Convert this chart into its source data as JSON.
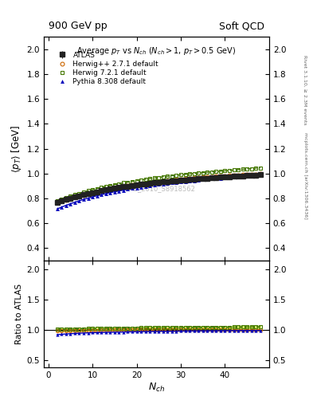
{
  "title_left": "900 GeV pp",
  "title_right": "Soft QCD",
  "plot_title": "Average $p_T$ vs $N_{ch}$ ($N_{ch} > 1$, $p_T > 0.5$ GeV)",
  "ylabel_main": "$\\langle p_T \\rangle$ [GeV]",
  "ylabel_ratio": "Ratio to ATLAS",
  "xlabel": "$N_{ch}$",
  "right_label_top": "Rivet 3.1.10, ≥ 2.3M events",
  "right_label_bottom": "mcplots.cern.ch [arXiv:1306.3436]",
  "watermark": "ATLAS_2010_S8918562",
  "ylim_main": [
    0.3,
    2.1
  ],
  "ylim_ratio": [
    0.39,
    2.15
  ],
  "yticks_main": [
    0.4,
    0.6,
    0.8,
    1.0,
    1.2,
    1.4,
    1.6,
    1.8,
    2.0
  ],
  "yticks_ratio": [
    0.5,
    1.0,
    1.5,
    2.0
  ],
  "xlim": [
    -1,
    50
  ],
  "xticks": [
    0,
    10,
    20,
    30,
    40
  ],
  "nch_atlas": [
    2,
    3,
    4,
    5,
    6,
    7,
    8,
    9,
    10,
    11,
    12,
    13,
    14,
    15,
    16,
    17,
    18,
    19,
    20,
    21,
    22,
    23,
    24,
    25,
    26,
    27,
    28,
    29,
    30,
    31,
    32,
    33,
    34,
    35,
    36,
    37,
    38,
    39,
    40,
    41,
    42,
    43,
    44,
    45,
    46,
    47,
    48
  ],
  "pt_atlas": [
    0.77,
    0.782,
    0.793,
    0.803,
    0.812,
    0.821,
    0.83,
    0.838,
    0.846,
    0.854,
    0.861,
    0.868,
    0.875,
    0.881,
    0.887,
    0.893,
    0.898,
    0.903,
    0.908,
    0.913,
    0.917,
    0.921,
    0.925,
    0.929,
    0.933,
    0.937,
    0.94,
    0.943,
    0.946,
    0.949,
    0.952,
    0.955,
    0.958,
    0.96,
    0.963,
    0.965,
    0.968,
    0.97,
    0.972,
    0.975,
    0.977,
    0.979,
    0.981,
    0.983,
    0.985,
    0.987,
    0.989
  ],
  "pt_atlas_err": [
    0.01,
    0.009,
    0.008,
    0.007,
    0.007,
    0.006,
    0.006,
    0.006,
    0.005,
    0.005,
    0.005,
    0.005,
    0.005,
    0.005,
    0.005,
    0.005,
    0.005,
    0.005,
    0.005,
    0.005,
    0.005,
    0.005,
    0.005,
    0.005,
    0.005,
    0.005,
    0.005,
    0.005,
    0.005,
    0.005,
    0.005,
    0.005,
    0.005,
    0.005,
    0.005,
    0.005,
    0.006,
    0.006,
    0.006,
    0.006,
    0.007,
    0.007,
    0.007,
    0.008,
    0.009,
    0.01,
    0.012
  ],
  "nch_herwigpp": [
    2,
    3,
    4,
    5,
    6,
    7,
    8,
    9,
    10,
    11,
    12,
    13,
    14,
    15,
    16,
    17,
    18,
    19,
    20,
    21,
    22,
    23,
    24,
    25,
    26,
    27,
    28,
    29,
    30,
    31,
    32,
    33,
    34,
    35,
    36,
    37,
    38,
    39,
    40,
    41,
    42,
    43,
    44,
    45,
    46,
    47,
    48
  ],
  "pt_herwigpp": [
    0.768,
    0.779,
    0.79,
    0.8,
    0.81,
    0.819,
    0.828,
    0.837,
    0.845,
    0.853,
    0.861,
    0.868,
    0.875,
    0.882,
    0.888,
    0.894,
    0.9,
    0.906,
    0.911,
    0.916,
    0.921,
    0.926,
    0.93,
    0.935,
    0.939,
    0.943,
    0.947,
    0.951,
    0.954,
    0.958,
    0.961,
    0.964,
    0.967,
    0.97,
    0.972,
    0.975,
    0.977,
    0.979,
    0.981,
    0.983,
    0.985,
    0.987,
    0.989,
    0.991,
    0.993,
    0.995,
    0.997
  ],
  "nch_herwig72": [
    2,
    3,
    4,
    5,
    6,
    7,
    8,
    9,
    10,
    11,
    12,
    13,
    14,
    15,
    16,
    17,
    18,
    19,
    20,
    21,
    22,
    23,
    24,
    25,
    26,
    27,
    28,
    29,
    30,
    31,
    32,
    33,
    34,
    35,
    36,
    37,
    38,
    39,
    40,
    41,
    42,
    43,
    44,
    45,
    46,
    47,
    48
  ],
  "pt_herwig72": [
    0.782,
    0.795,
    0.807,
    0.819,
    0.83,
    0.841,
    0.851,
    0.861,
    0.87,
    0.879,
    0.888,
    0.896,
    0.904,
    0.911,
    0.918,
    0.925,
    0.931,
    0.937,
    0.943,
    0.949,
    0.954,
    0.959,
    0.964,
    0.969,
    0.974,
    0.978,
    0.982,
    0.986,
    0.99,
    0.994,
    0.997,
    1.001,
    1.004,
    1.007,
    1.01,
    1.013,
    1.016,
    1.019,
    1.022,
    1.025,
    1.028,
    1.031,
    1.034,
    1.037,
    1.04,
    1.043,
    1.046
  ],
  "nch_pythia": [
    2,
    3,
    4,
    5,
    6,
    7,
    8,
    9,
    10,
    11,
    12,
    13,
    14,
    15,
    16,
    17,
    18,
    19,
    20,
    21,
    22,
    23,
    24,
    25,
    26,
    27,
    28,
    29,
    30,
    31,
    32,
    33,
    34,
    35,
    36,
    37,
    38,
    39,
    40,
    41,
    42,
    43,
    44,
    45,
    46,
    47,
    48
  ],
  "pt_pythia": [
    0.715,
    0.73,
    0.744,
    0.757,
    0.769,
    0.781,
    0.792,
    0.802,
    0.812,
    0.821,
    0.83,
    0.838,
    0.846,
    0.853,
    0.86,
    0.867,
    0.874,
    0.88,
    0.886,
    0.892,
    0.897,
    0.902,
    0.907,
    0.912,
    0.917,
    0.921,
    0.925,
    0.929,
    0.933,
    0.937,
    0.941,
    0.944,
    0.948,
    0.951,
    0.954,
    0.957,
    0.96,
    0.963,
    0.966,
    0.969,
    0.971,
    0.974,
    0.976,
    0.978,
    0.98,
    0.982,
    0.984
  ],
  "color_atlas": "#222222",
  "color_herwigpp": "#CC6600",
  "color_herwig72": "#447700",
  "color_pythia": "#0000BB",
  "color_band_herwig72_fill": "#CCEE44",
  "color_band_herwigpp_fill": "#FFCC66",
  "legend_entries": [
    "ATLAS",
    "Herwig++ 2.7.1 default",
    "Herwig 7.2.1 default",
    "Pythia 8.308 default"
  ],
  "bg_color": "#FFFFFF"
}
